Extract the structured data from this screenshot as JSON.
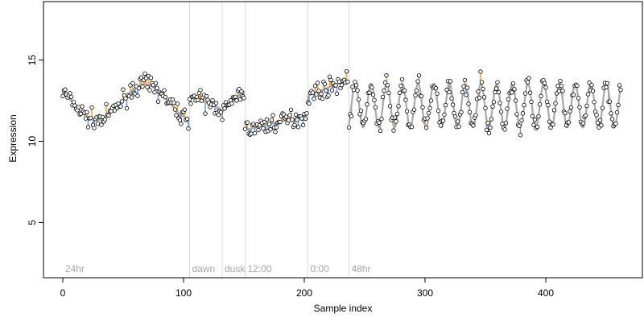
{
  "chart_data": {
    "type": "scatter",
    "title": "",
    "xlabel": "Sample index",
    "ylabel": "Expression",
    "xlim": [
      -16,
      480
    ],
    "ylim": [
      1.6,
      18.6
    ],
    "x_ticks": [
      0,
      100,
      200,
      300,
      400
    ],
    "y_ticks": [
      5,
      10,
      15
    ],
    "grid": false,
    "legend": "none",
    "colors": {
      "point_fill": "#ffffff",
      "point_stroke": "#000000",
      "fit_line": "#a9a9a9",
      "positive_residual": "#f0a848",
      "negative_residual": "#6f9ad6",
      "region_line": "#dcdcdc",
      "region_label": "#a6a6a6"
    },
    "regions": [
      {
        "label": "24hr",
        "x_start": 0,
        "x_end": 105
      },
      {
        "label": "dawn",
        "x_start": 105,
        "x_end": 132
      },
      {
        "label": "dusk",
        "x_start": 132,
        "x_end": 151
      },
      {
        "label": "12:00",
        "x_start": 151,
        "x_end": 203
      },
      {
        "label": "0:00",
        "x_start": 203,
        "x_end": 237
      },
      {
        "label": "48hr",
        "x_start": 237,
        "x_end": 462
      }
    ],
    "region_boundaries": [
      105,
      132,
      151,
      203,
      237
    ],
    "segments": [
      {
        "name": "24hr",
        "x_start": 0,
        "x_end": 104,
        "kind": "wave",
        "base": 12.4,
        "amp": 1.1,
        "period": 80,
        "phase": 48
      },
      {
        "name": "dawn",
        "x_start": 105,
        "x_end": 131,
        "kind": "linear",
        "y_start": 12.8,
        "y_end": 12.0
      },
      {
        "name": "dusk",
        "x_start": 132,
        "x_end": 150,
        "kind": "linear",
        "y_start": 11.8,
        "y_end": 13.1
      },
      {
        "name": "12:00",
        "x_start": 151,
        "x_end": 202,
        "kind": "linear",
        "y_start": 10.7,
        "y_end": 11.6
      },
      {
        "name": "0:00",
        "x_start": 203,
        "x_end": 236,
        "kind": "linear",
        "y_start": 12.8,
        "y_end": 13.8
      },
      {
        "name": "48hr",
        "x_start": 237,
        "x_end": 462,
        "kind": "wave",
        "base": 12.2,
        "amp": 1.35,
        "period": 13,
        "phase": 5
      }
    ],
    "noise": 0.42
  }
}
